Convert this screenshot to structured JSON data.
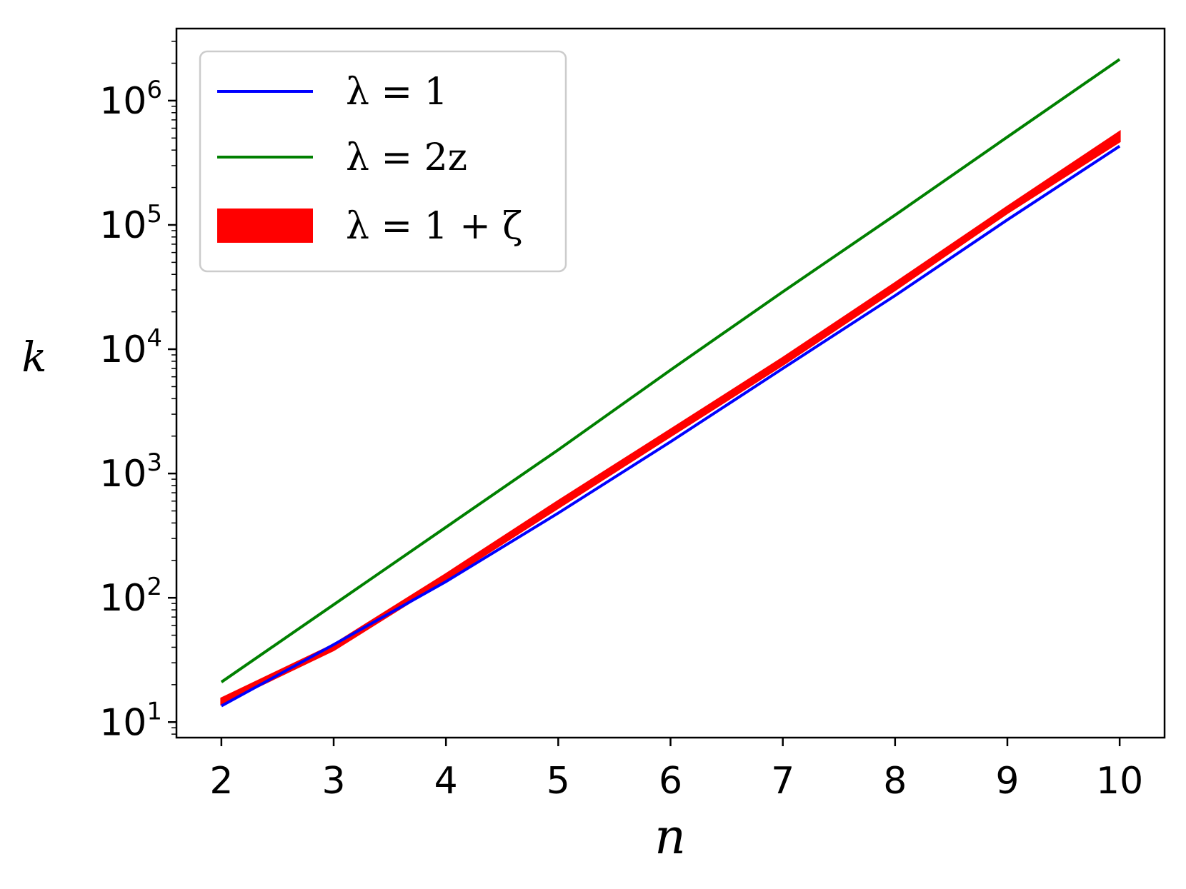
{
  "chart_data": {
    "type": "line",
    "title": "",
    "xlabel": "n",
    "ylabel": "k",
    "xlim": [
      1.6,
      10.4
    ],
    "ylim": [
      7.5,
      3800000
    ],
    "yscale": "log",
    "grid": false,
    "legend_position": "top-left",
    "x_ticks": [
      2,
      3,
      4,
      5,
      6,
      7,
      8,
      9,
      10
    ],
    "x_tick_labels": [
      "2",
      "3",
      "4",
      "5",
      "6",
      "7",
      "8",
      "9",
      "10"
    ],
    "y_ticks": [
      10,
      100,
      1000,
      10000,
      100000,
      1000000
    ],
    "y_tick_bases": [
      "10",
      "10",
      "10",
      "10",
      "10",
      "10"
    ],
    "y_tick_exponents": [
      "1",
      "2",
      "3",
      "4",
      "5",
      "6"
    ],
    "x": [
      2,
      3,
      4,
      5,
      6,
      7,
      8,
      9,
      10
    ],
    "series": [
      {
        "name": "λ = 2z",
        "color": "#008000",
        "kind": "line",
        "values": [
          21,
          88,
          370,
          1550,
          6800,
          29000,
          120000,
          510000,
          2150000
        ]
      },
      {
        "name": "λ = 1 + ζ",
        "color": "#ff0000",
        "kind": "band",
        "lower": [
          14,
          38,
          140,
          530,
          2000,
          7500,
          30000,
          125000,
          470000
        ],
        "upper": [
          15.5,
          42,
          155,
          600,
          2250,
          8500,
          34000,
          140000,
          560000
        ]
      },
      {
        "name": "λ = 1",
        "color": "#0000ff",
        "kind": "line",
        "values": [
          13.5,
          42,
          135,
          480,
          1800,
          7000,
          27000,
          110000,
          430000
        ]
      }
    ],
    "legend": [
      {
        "label": "λ = 1",
        "color": "#0000ff",
        "kind": "line"
      },
      {
        "label": "λ = 2z",
        "color": "#008000",
        "kind": "line"
      },
      {
        "label": "λ = 1 + ζ",
        "color": "#ff0000",
        "kind": "band"
      }
    ]
  }
}
